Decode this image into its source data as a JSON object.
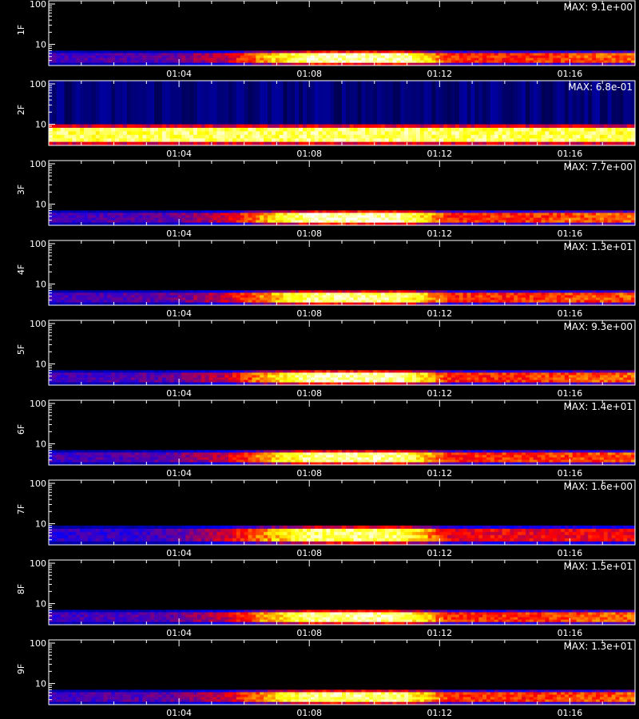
{
  "chart_data": {
    "type": "heatmap",
    "x_axis": {
      "range": [
        "01:00",
        "01:18"
      ],
      "ticks": [
        "01:04",
        "01:08",
        "01:12",
        "01:16"
      ]
    },
    "y_axis": {
      "scale": "log",
      "range": [
        3,
        120
      ],
      "ticks": [
        "10",
        "100"
      ]
    },
    "colormap": [
      "#000000",
      "#0000ff",
      "#ff0000",
      "#ffff00",
      "#ffffff"
    ],
    "panels": [
      {
        "label": "1F",
        "max_text": "MAX: 9.1e+00",
        "band_energy": [
          4,
          7
        ],
        "profile": [
          [
            0,
            0.32
          ],
          [
            0.2,
            0.35
          ],
          [
            0.3,
            0.45
          ],
          [
            0.45,
            0.95
          ],
          [
            0.6,
            0.95
          ],
          [
            0.68,
            0.55
          ],
          [
            0.8,
            0.55
          ],
          [
            1,
            0.62
          ]
        ]
      },
      {
        "label": "2F",
        "max_text": "MAX: 6.8e-01",
        "band_energy": [
          3.5,
          10
        ],
        "profile": [
          [
            0,
            0.85
          ],
          [
            0.5,
            0.88
          ],
          [
            1,
            0.85
          ]
        ]
      },
      {
        "label": "3F",
        "max_text": "MAX: 7.7e+00",
        "band_energy": [
          4,
          7
        ],
        "profile": [
          [
            0,
            0.32
          ],
          [
            0.2,
            0.35
          ],
          [
            0.3,
            0.45
          ],
          [
            0.45,
            0.95
          ],
          [
            0.6,
            0.95
          ],
          [
            0.68,
            0.55
          ],
          [
            0.8,
            0.55
          ],
          [
            1,
            0.62
          ]
        ]
      },
      {
        "label": "4F",
        "max_text": "MAX: 1.3e+01",
        "band_energy": [
          4,
          7
        ],
        "profile": [
          [
            0,
            0.32
          ],
          [
            0.2,
            0.35
          ],
          [
            0.3,
            0.45
          ],
          [
            0.45,
            0.9
          ],
          [
            0.6,
            0.9
          ],
          [
            0.68,
            0.55
          ],
          [
            0.8,
            0.55
          ],
          [
            1,
            0.6
          ]
        ]
      },
      {
        "label": "5F",
        "max_text": "MAX: 9.3e+00",
        "band_energy": [
          4,
          7
        ],
        "profile": [
          [
            0,
            0.32
          ],
          [
            0.2,
            0.35
          ],
          [
            0.3,
            0.45
          ],
          [
            0.45,
            0.95
          ],
          [
            0.6,
            0.95
          ],
          [
            0.68,
            0.55
          ],
          [
            0.8,
            0.55
          ],
          [
            1,
            0.62
          ]
        ]
      },
      {
        "label": "6F",
        "max_text": "MAX: 1.4e+01",
        "band_energy": [
          4,
          7
        ],
        "profile": [
          [
            0,
            0.32
          ],
          [
            0.2,
            0.35
          ],
          [
            0.3,
            0.45
          ],
          [
            0.45,
            0.92
          ],
          [
            0.6,
            0.92
          ],
          [
            0.68,
            0.55
          ],
          [
            0.8,
            0.55
          ],
          [
            1,
            0.6
          ]
        ]
      },
      {
        "label": "7F",
        "max_text": "MAX: 1.6e+00",
        "band_energy": [
          4,
          9
        ],
        "profile": [
          [
            0,
            0.3
          ],
          [
            0.2,
            0.32
          ],
          [
            0.3,
            0.45
          ],
          [
            0.45,
            0.88
          ],
          [
            0.6,
            0.88
          ],
          [
            0.68,
            0.5
          ],
          [
            0.8,
            0.5
          ],
          [
            1,
            0.5
          ]
        ]
      },
      {
        "label": "8F",
        "max_text": "MAX: 1.5e+01",
        "band_energy": [
          4,
          7
        ],
        "profile": [
          [
            0,
            0.32
          ],
          [
            0.2,
            0.35
          ],
          [
            0.3,
            0.45
          ],
          [
            0.45,
            0.92
          ],
          [
            0.6,
            0.92
          ],
          [
            0.68,
            0.55
          ],
          [
            0.8,
            0.55
          ],
          [
            1,
            0.62
          ]
        ]
      },
      {
        "label": "9F",
        "max_text": "MAX: 1.3e+01",
        "band_energy": [
          4,
          7
        ],
        "profile": [
          [
            0,
            0.32
          ],
          [
            0.2,
            0.35
          ],
          [
            0.3,
            0.45
          ],
          [
            0.45,
            0.9
          ],
          [
            0.6,
            0.9
          ],
          [
            0.68,
            0.55
          ],
          [
            0.8,
            0.55
          ],
          [
            1,
            0.6
          ]
        ]
      }
    ]
  }
}
